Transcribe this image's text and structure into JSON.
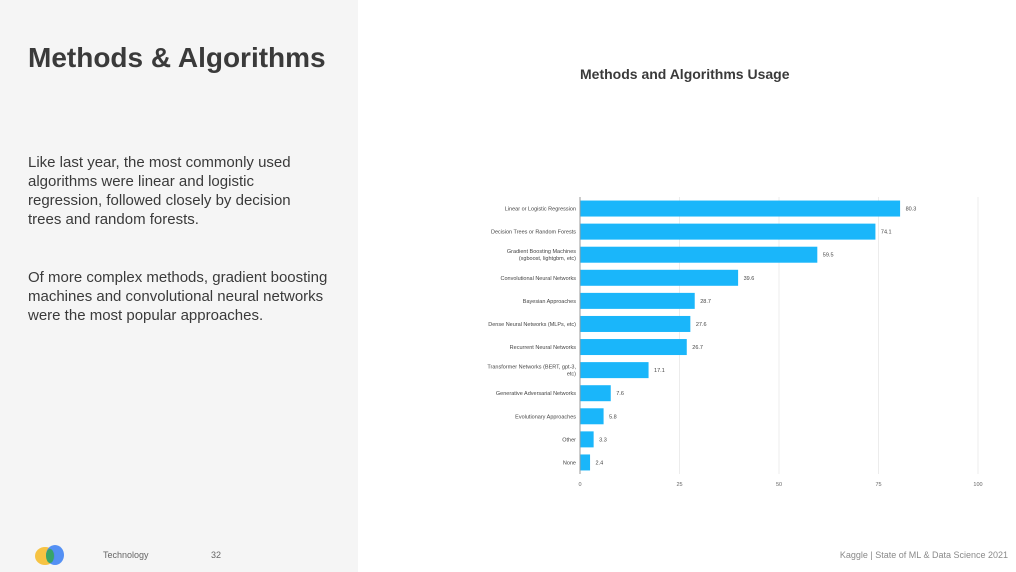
{
  "slide": {
    "title": "Methods & Algorithms",
    "paragraph1": "Like last year, the most commonly used algorithms were linear and logistic regression, followed closely by decision trees and random forests.",
    "paragraph2": "Of more complex methods, gradient boosting machines and convolutional neural networks were the most popular approaches."
  },
  "footer": {
    "section": "Technology",
    "page": "32",
    "credit": "Kaggle  |  State of ML & Data Science 2021"
  },
  "colors": {
    "bar": "#1ab6fa",
    "panel": "#f5f5f5",
    "text": "#3a3a3a"
  },
  "chart_data": {
    "type": "bar",
    "orientation": "horizontal",
    "title": "Methods and Algorithms Usage",
    "categories": [
      [
        "Linear or Logistic Regression"
      ],
      [
        "Decision Trees or Random Forests"
      ],
      [
        "Gradient Boosting Machines",
        "(xgboost, lightgbm, etc)"
      ],
      [
        "Convolutional Neural Networks"
      ],
      [
        "Bayesian Approaches"
      ],
      [
        "Dense Neural Networks (MLPs, etc)"
      ],
      [
        "Recurrent Neural Networks"
      ],
      [
        "Transformer Networks (BERT, gpt-3,",
        "etc)"
      ],
      [
        "Generative Adversarial Networks"
      ],
      [
        "Evolutionary Approaches"
      ],
      [
        "Other"
      ],
      [
        "None"
      ]
    ],
    "values": [
      80.3,
      74.1,
      59.5,
      39.6,
      28.7,
      27.6,
      26.7,
      17.1,
      7.6,
      5.8,
      3.3,
      2.4
    ],
    "value_labels": [
      "80.3",
      "74.1",
      "59.5",
      "39.6",
      "28.7",
      "27.6",
      "26.7",
      "17.1",
      "7.6",
      "5.8",
      "3.3",
      "2.4"
    ],
    "xlim": [
      0,
      100
    ],
    "xticks": [
      0,
      25,
      50,
      75,
      100
    ],
    "grid": true,
    "xlabel": "",
    "ylabel": ""
  }
}
